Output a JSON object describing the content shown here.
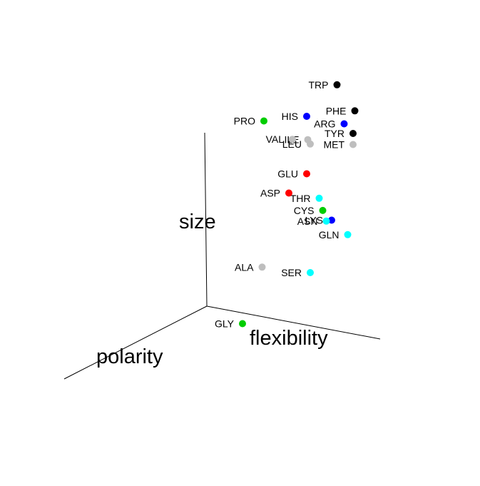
{
  "chart_data": {
    "type": "scatter",
    "projection": "3d",
    "axes": {
      "x": {
        "label": "polarity"
      },
      "y": {
        "label": "flexibility"
      },
      "z": {
        "label": "size"
      }
    },
    "grid": false,
    "legend": "none",
    "colors": {
      "black": "#000000",
      "blue": "#0000ff",
      "gray": "#bebebe",
      "cyan": "#00ffff",
      "green": "#00cd00",
      "red": "#ff0000"
    },
    "points": [
      {
        "label": "TRP",
        "color": "#000000",
        "x": 0.45,
        "y": 0.7,
        "z": 0.95
      },
      {
        "label": "TYR",
        "color": "#000000",
        "x": 0.3,
        "y": 0.85,
        "z": 0.8
      },
      {
        "label": "ARG",
        "color": "#0000ff",
        "x": 0.45,
        "y": 0.75,
        "z": 0.72
      },
      {
        "label": "PHE",
        "color": "#000000",
        "x": 0.55,
        "y": 0.8,
        "z": 0.7
      },
      {
        "label": "MET",
        "color": "#bebebe",
        "x": 0.5,
        "y": 0.8,
        "z": 0.55
      },
      {
        "label": "HIS",
        "color": "#0000ff",
        "x": 0.8,
        "y": 0.4,
        "z": 0.45
      },
      {
        "label": "GLN",
        "color": "#00ffff",
        "x": 0.15,
        "y": 0.85,
        "z": 0.35
      },
      {
        "label": "LEU",
        "color": "#bebebe",
        "x": 0.7,
        "y": 0.45,
        "z": 0.38
      },
      {
        "label": "ILE",
        "color": "#bebebe",
        "x": 0.75,
        "y": 0.42,
        "z": 0.36
      },
      {
        "label": "LYS",
        "color": "#0000ff",
        "x": 0.3,
        "y": 0.7,
        "z": 0.3
      },
      {
        "label": "GLU",
        "color": "#ff0000",
        "x": 0.6,
        "y": 0.45,
        "z": 0.3
      },
      {
        "label": "VAL",
        "color": "#bebebe",
        "x": 0.8,
        "y": 0.3,
        "z": 0.32
      },
      {
        "label": "ASN",
        "color": "#00ffff",
        "x": 0.35,
        "y": 0.65,
        "z": 0.25
      },
      {
        "label": "CYS",
        "color": "#00cd00",
        "x": 0.45,
        "y": 0.6,
        "z": 0.22
      },
      {
        "label": "THR",
        "color": "#00ffff",
        "x": 0.55,
        "y": 0.55,
        "z": 0.2
      },
      {
        "label": "PRO",
        "color": "#00cd00",
        "x": 1.0,
        "y": 0.05,
        "z": 0.25
      },
      {
        "label": "ASP",
        "color": "#ff0000",
        "x": 0.7,
        "y": 0.3,
        "z": 0.1
      },
      {
        "label": "SER",
        "color": "#00ffff",
        "x": 0.3,
        "y": 0.55,
        "z": 0.0
      },
      {
        "label": "ALA",
        "color": "#bebebe",
        "x": 0.35,
        "y": 0.2,
        "z": 0.0
      },
      {
        "label": "GLY",
        "color": "#00cd00",
        "x": 0.0,
        "y": 0.15,
        "z": 0.0
      }
    ]
  }
}
